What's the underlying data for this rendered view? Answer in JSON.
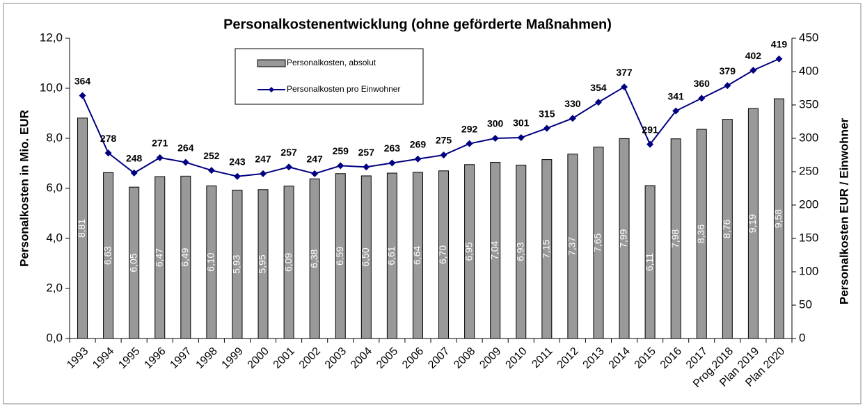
{
  "chart_data": {
    "type": "combo",
    "title": "Personalkostenentwicklung (ohne geförderte Maßnahmen)",
    "y_label": "Personalkosten in Mio. EUR",
    "y2_label": "Personalkosten EUR / Einwohner",
    "categories": [
      "1993",
      "1994",
      "1995",
      "1996",
      "1997",
      "1998",
      "1999",
      "2000",
      "2001",
      "2002",
      "2003",
      "2004",
      "2005",
      "2006",
      "2007",
      "2008",
      "2009",
      "2010",
      "2011",
      "2012",
      "2013",
      "2014",
      "2015",
      "2016",
      "2017",
      "Prog.2018",
      "Plan 2019",
      "Plan 2020"
    ],
    "series": [
      {
        "name": "Personalkosten, absolut",
        "type": "bar",
        "color": "#999999",
        "values": [
          8.81,
          6.63,
          6.05,
          6.47,
          6.49,
          6.1,
          5.93,
          5.95,
          6.09,
          6.38,
          6.59,
          6.5,
          6.61,
          6.64,
          6.7,
          6.95,
          7.04,
          6.93,
          7.15,
          7.37,
          7.65,
          7.99,
          6.11,
          7.98,
          8.36,
          8.76,
          9.19,
          9.58
        ],
        "value_labels": [
          "8,81",
          "6,63",
          "6,05",
          "6,47",
          "6,49",
          "6,10",
          "5,93",
          "5,95",
          "6,09",
          "6,38",
          "6,59",
          "6,50",
          "6,61",
          "6,64",
          "6,70",
          "6,95",
          "7,04",
          "6,93",
          "7,15",
          "7,37",
          "7,65",
          "7,99",
          "6,11",
          "7,98",
          "8,36",
          "8,76",
          "9,19",
          "9,58"
        ]
      },
      {
        "name": "Personalkosten pro Einwohner",
        "type": "line",
        "axis": "y2",
        "color": "#000080",
        "values": [
          364,
          278,
          248,
          271,
          264,
          252,
          243,
          247,
          257,
          247,
          259,
          257,
          263,
          269,
          275,
          292,
          300,
          301,
          315,
          330,
          354,
          377,
          291,
          341,
          360,
          379,
          402,
          419
        ]
      }
    ],
    "ylim": [
      0,
      12
    ],
    "yticks": [
      {
        "value": 0,
        "label": "0,0"
      },
      {
        "value": 2,
        "label": "2,0"
      },
      {
        "value": 4,
        "label": "4,0"
      },
      {
        "value": 6,
        "label": "6,0"
      },
      {
        "value": 8,
        "label": "8,0"
      },
      {
        "value": 10,
        "label": "10,0"
      },
      {
        "value": 12,
        "label": "12,0"
      }
    ],
    "y2lim": [
      0,
      450
    ],
    "y2ticks": [
      0,
      50,
      100,
      150,
      200,
      250,
      300,
      350,
      400,
      450
    ],
    "grid": false,
    "legend": "top"
  }
}
